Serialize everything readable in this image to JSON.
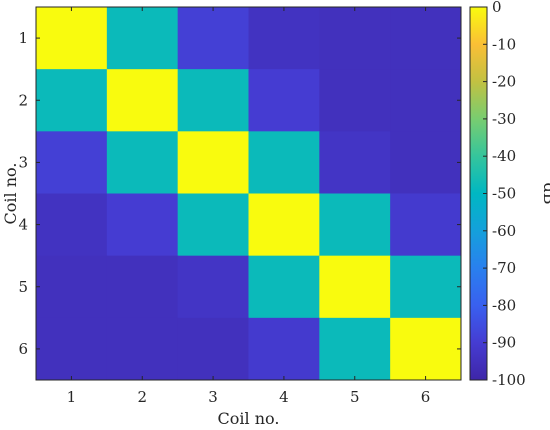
{
  "chart_data": {
    "type": "heatmap",
    "xlabel": "Coil no.",
    "ylabel": "Coil no.",
    "x_categories": [
      "1",
      "2",
      "3",
      "4",
      "5",
      "6"
    ],
    "y_categories": [
      "1",
      "2",
      "3",
      "4",
      "5",
      "6"
    ],
    "values": [
      [
        0,
        -48,
        -89,
        -94,
        -95,
        -95
      ],
      [
        -48,
        0,
        -48,
        -90,
        -95,
        -95
      ],
      [
        -89,
        -48,
        0,
        -48,
        -93,
        -95
      ],
      [
        -94,
        -90,
        -48,
        0,
        -48,
        -91
      ],
      [
        -95,
        -95,
        -93,
        -48,
        0,
        -48
      ],
      [
        -95,
        -95,
        -95,
        -91,
        -48,
        0
      ]
    ],
    "colorbar": {
      "label": "dB",
      "range": [
        -100,
        0
      ],
      "ticks": [
        0,
        -10,
        -20,
        -30,
        -40,
        -50,
        -60,
        -70,
        -80,
        -90,
        -100
      ],
      "colormap": "parula"
    }
  }
}
